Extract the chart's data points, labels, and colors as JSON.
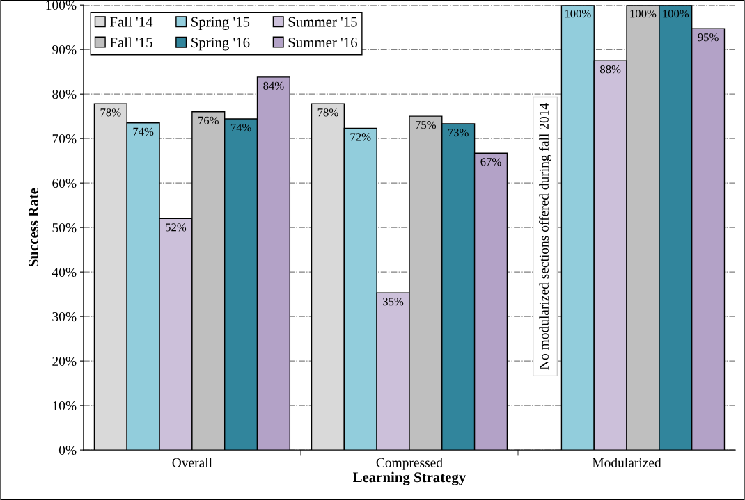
{
  "chart_data": {
    "type": "bar",
    "xlabel": "Learning Strategy",
    "ylabel": "Success Rate",
    "categories": [
      "Overall",
      "Compressed",
      "Modularized"
    ],
    "series": [
      {
        "name": "Fall '14",
        "color": "#d9d9d9",
        "values": [
          77.8,
          77.8,
          null
        ],
        "value_labels": [
          "78%",
          "78%",
          null
        ]
      },
      {
        "name": "Spring '15",
        "color": "#92cddc",
        "values": [
          73.5,
          72.3,
          100
        ],
        "value_labels": [
          "74%",
          "72%",
          "100%"
        ]
      },
      {
        "name": "Summer '15",
        "color": "#ccc0da",
        "values": [
          52,
          35.3,
          87.5
        ],
        "value_labels": [
          "52%",
          "35%",
          "88%"
        ]
      },
      {
        "name": "Fall '15",
        "color": "#bfbfbf",
        "values": [
          76,
          75,
          100
        ],
        "value_labels": [
          "76%",
          "75%",
          "100%"
        ]
      },
      {
        "name": "Spring '16",
        "color": "#31859c",
        "values": [
          74.4,
          73.3,
          100
        ],
        "value_labels": [
          "74%",
          "73%",
          "100%"
        ]
      },
      {
        "name": "Summer '16",
        "color": "#b3a2c7",
        "values": [
          83.8,
          66.7,
          94.7
        ],
        "value_labels": [
          "84%",
          "67%",
          "95%"
        ]
      }
    ],
    "ylim": [
      0,
      100
    ],
    "yticks": [
      {
        "value": 0,
        "label": "0%"
      },
      {
        "value": 10,
        "label": "10%"
      },
      {
        "value": 20,
        "label": "20%"
      },
      {
        "value": 30,
        "label": "30%"
      },
      {
        "value": 40,
        "label": "40%"
      },
      {
        "value": 50,
        "label": "50%"
      },
      {
        "value": 60,
        "label": "60%"
      },
      {
        "value": 70,
        "label": "70%"
      },
      {
        "value": 80,
        "label": "80%"
      },
      {
        "value": 90,
        "label": "90%"
      },
      {
        "value": 100,
        "label": "100%"
      }
    ],
    "grid": "y",
    "legend": "top left",
    "annotations": [
      "No modularized sections offered during fall 2014"
    ]
  }
}
